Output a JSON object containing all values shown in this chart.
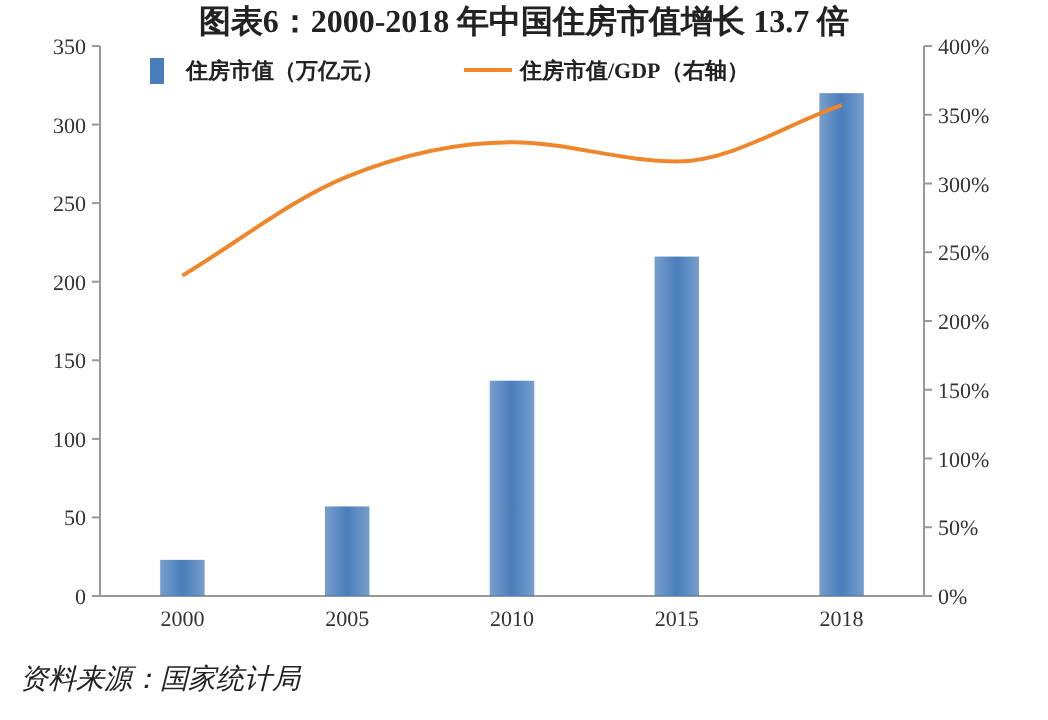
{
  "chart_data": {
    "type": "bar",
    "title": "图表6：2000-2018 年中国住房市值增长 13.7 倍",
    "categories": [
      "2000",
      "2005",
      "2010",
      "2015",
      "2018"
    ],
    "series": [
      {
        "name": "住房市值（万亿元）",
        "color": "#4a7ebb",
        "values": [
          23,
          57,
          137,
          216,
          320
        ]
      },
      {
        "name": "住房市值/GDP（右轴）",
        "type": "line",
        "axis": "y2",
        "color": "#f0862c",
        "values": [
          233,
          305,
          330,
          316,
          357
        ]
      }
    ],
    "ylim": [
      0,
      350
    ],
    "yticks": [
      0,
      50,
      100,
      150,
      200,
      250,
      300,
      350
    ],
    "y2lim": [
      0,
      400
    ],
    "y2ticks": [
      {
        "value": 0,
        "label": "0%"
      },
      {
        "value": 50,
        "label": "50%"
      },
      {
        "value": 100,
        "label": "100%"
      },
      {
        "value": 150,
        "label": "150%"
      },
      {
        "value": 200,
        "label": "200%"
      },
      {
        "value": 250,
        "label": "250%"
      },
      {
        "value": 300,
        "label": "300%"
      },
      {
        "value": 350,
        "label": "350%"
      },
      {
        "value": 400,
        "label": "400%"
      }
    ],
    "legend": "top",
    "grid": false,
    "marker": "none",
    "annotations": [
      "资料来源：国家统计局"
    ]
  }
}
